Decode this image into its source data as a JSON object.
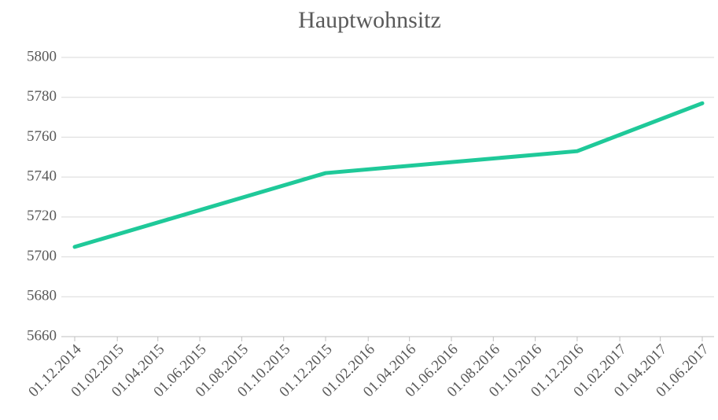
{
  "chart_data": {
    "type": "line",
    "title": "Hauptwohnsitz",
    "x": [
      "01.12.2014",
      "01.12.2015",
      "01.12.2016",
      "01.06.2017"
    ],
    "series": [
      {
        "name": "Hauptwohnsitz",
        "color": "#1fc999",
        "values": [
          5705,
          5742,
          5753,
          5777
        ]
      }
    ],
    "xlim": [
      "01.12.2014",
      "01.06.2017"
    ],
    "xticks": [
      "01.12.2014",
      "01.02.2015",
      "01.04.2015",
      "01.06.2015",
      "01.08.2015",
      "01.10.2015",
      "01.12.2015",
      "01.02.2016",
      "01.04.2016",
      "01.06.2016",
      "01.08.2016",
      "01.10.2016",
      "01.12.2016",
      "01.02.2017",
      "01.04.2017",
      "01.06.2017"
    ],
    "ylim": [
      5660,
      5800
    ],
    "yticks": [
      5660,
      5680,
      5700,
      5720,
      5740,
      5760,
      5780,
      5800
    ],
    "grid": true
  }
}
